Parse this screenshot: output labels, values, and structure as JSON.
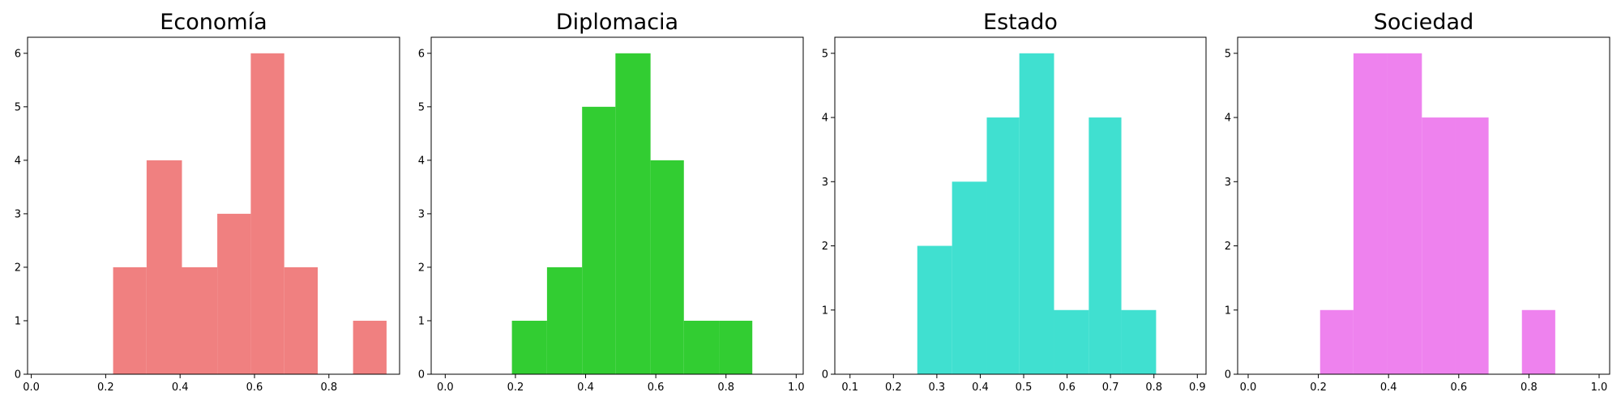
{
  "chart_data": [
    {
      "type": "bar",
      "title": "Economía",
      "color": "#f08080",
      "xlim": [
        -0.01,
        0.99
      ],
      "ylim": [
        0,
        6.3
      ],
      "xticks": [
        "0.0",
        "0.2",
        "0.4",
        "0.6",
        "0.8"
      ],
      "yticks": [
        "0",
        "1",
        "2",
        "3",
        "4",
        "5",
        "6"
      ],
      "bins": [
        {
          "x0": 0.22,
          "x1": 0.31,
          "count": 2
        },
        {
          "x0": 0.31,
          "x1": 0.405,
          "count": 4
        },
        {
          "x0": 0.405,
          "x1": 0.5,
          "count": 2
        },
        {
          "x0": 0.5,
          "x1": 0.59,
          "count": 3
        },
        {
          "x0": 0.59,
          "x1": 0.68,
          "count": 6
        },
        {
          "x0": 0.68,
          "x1": 0.77,
          "count": 2
        },
        {
          "x0": 0.77,
          "x1": 0.865,
          "count": 0
        },
        {
          "x0": 0.865,
          "x1": 0.955,
          "count": 1
        }
      ]
    },
    {
      "type": "bar",
      "title": "Diplomacia",
      "color": "#32cd32",
      "xlim": [
        -0.04,
        1.02
      ],
      "ylim": [
        0,
        6.3
      ],
      "xticks": [
        "0.0",
        "0.2",
        "0.4",
        "0.6",
        "0.8",
        "1.0"
      ],
      "yticks": [
        "0",
        "1",
        "2",
        "3",
        "4",
        "5",
        "6"
      ],
      "bins": [
        {
          "x0": 0.19,
          "x1": 0.29,
          "count": 1
        },
        {
          "x0": 0.29,
          "x1": 0.39,
          "count": 2
        },
        {
          "x0": 0.39,
          "x1": 0.485,
          "count": 5
        },
        {
          "x0": 0.485,
          "x1": 0.585,
          "count": 6
        },
        {
          "x0": 0.585,
          "x1": 0.68,
          "count": 4
        },
        {
          "x0": 0.68,
          "x1": 0.78,
          "count": 1
        },
        {
          "x0": 0.78,
          "x1": 0.875,
          "count": 1
        }
      ]
    },
    {
      "type": "bar",
      "title": "Estado",
      "color": "#40e0d0",
      "xlim": [
        0.065,
        0.92
      ],
      "ylim": [
        0,
        5.25
      ],
      "xticks": [
        "0.1",
        "0.2",
        "0.3",
        "0.4",
        "0.5",
        "0.6",
        "0.7",
        "0.8",
        "0.9"
      ],
      "yticks": [
        "0",
        "1",
        "2",
        "3",
        "4",
        "5"
      ],
      "bins": [
        {
          "x0": 0.255,
          "x1": 0.335,
          "count": 2
        },
        {
          "x0": 0.335,
          "x1": 0.415,
          "count": 3
        },
        {
          "x0": 0.415,
          "x1": 0.49,
          "count": 4
        },
        {
          "x0": 0.49,
          "x1": 0.57,
          "count": 5
        },
        {
          "x0": 0.57,
          "x1": 0.65,
          "count": 1
        },
        {
          "x0": 0.65,
          "x1": 0.725,
          "count": 4
        },
        {
          "x0": 0.725,
          "x1": 0.805,
          "count": 1
        }
      ]
    },
    {
      "type": "bar",
      "title": "Sociedad",
      "color": "#ee82ee",
      "xlim": [
        -0.03,
        1.03
      ],
      "ylim": [
        0,
        5.25
      ],
      "xticks": [
        "0.0",
        "0.2",
        "0.4",
        "0.6",
        "0.8",
        "1.0"
      ],
      "yticks": [
        "0",
        "1",
        "2",
        "3",
        "4",
        "5"
      ],
      "bins": [
        {
          "x0": 0.205,
          "x1": 0.3,
          "count": 1
        },
        {
          "x0": 0.3,
          "x1": 0.395,
          "count": 5
        },
        {
          "x0": 0.395,
          "x1": 0.495,
          "count": 5
        },
        {
          "x0": 0.495,
          "x1": 0.59,
          "count": 4
        },
        {
          "x0": 0.59,
          "x1": 0.685,
          "count": 4
        },
        {
          "x0": 0.685,
          "x1": 0.78,
          "count": 0
        },
        {
          "x0": 0.78,
          "x1": 0.875,
          "count": 1
        }
      ]
    }
  ]
}
